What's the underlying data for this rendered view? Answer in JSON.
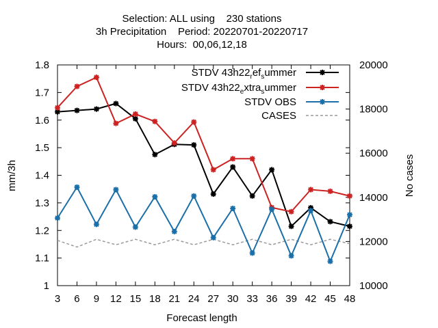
{
  "chart_data": {
    "type": "line",
    "title_lines": [
      "Selection: ALL using    230 stations",
      "3h Precipitation    Period: 20220701-20220717",
      "Hours:  00,06,12,18"
    ],
    "xlabel": "Forecast length",
    "ylabel": "mm/3h",
    "y2label": "No cases",
    "x": [
      3,
      6,
      9,
      12,
      15,
      18,
      21,
      24,
      27,
      30,
      33,
      36,
      39,
      42,
      45,
      48
    ],
    "xlim": [
      3,
      48
    ],
    "ylim": [
      1.0,
      1.8
    ],
    "y2lim": [
      10000,
      20000
    ],
    "yticks": [
      "1",
      "1.1",
      "1.2",
      "1.3",
      "1.4",
      "1.5",
      "1.6",
      "1.7",
      "1.8"
    ],
    "y2ticks": [
      "10000",
      "12000",
      "14000",
      "16000",
      "18000",
      "20000"
    ],
    "xticks": [
      "3",
      "6",
      "9",
      "12",
      "15",
      "18",
      "21",
      "24",
      "27",
      "30",
      "33",
      "36",
      "39",
      "42",
      "45",
      "48"
    ],
    "legend_position": "top-right",
    "grid": false,
    "series": [
      {
        "legend_main": "STDV 43h22",
        "legend_parts": [
          {
            "t": "STDV 43h22",
            "sub": false
          },
          {
            "t": "r",
            "sub": true
          },
          {
            "t": "ef",
            "sub": false
          },
          {
            "t": "s",
            "sub": true
          },
          {
            "t": "ummer",
            "sub": false
          }
        ],
        "color": "#000000",
        "axis": "y",
        "style": "solid",
        "marker": "star",
        "values": [
          1.63,
          1.635,
          1.64,
          1.66,
          1.605,
          1.475,
          1.512,
          1.51,
          1.332,
          1.43,
          1.325,
          1.42,
          1.215,
          1.282,
          1.232,
          1.215
        ]
      },
      {
        "legend_main": "STDV 43h22",
        "legend_parts": [
          {
            "t": "STDV 43h22",
            "sub": false
          },
          {
            "t": "e",
            "sub": true
          },
          {
            "t": "xtra",
            "sub": false
          },
          {
            "t": "s",
            "sub": true
          },
          {
            "t": "ummer",
            "sub": false
          }
        ],
        "color": "#cc2222",
        "axis": "y",
        "style": "solid",
        "marker": "star",
        "values": [
          1.645,
          1.722,
          1.755,
          1.588,
          1.622,
          1.595,
          1.517,
          1.593,
          1.42,
          1.46,
          1.46,
          1.283,
          1.268,
          1.348,
          1.342,
          1.325
        ]
      },
      {
        "legend_main": "STDV OBS",
        "legend_parts": [
          {
            "t": "STDV OBS",
            "sub": false
          }
        ],
        "color": "#1a6fa8",
        "axis": "y",
        "style": "solid",
        "marker": "star",
        "values": [
          1.245,
          1.357,
          1.222,
          1.348,
          1.212,
          1.322,
          1.196,
          1.325,
          1.174,
          1.28,
          1.118,
          1.277,
          1.108,
          1.272,
          1.088,
          1.257
        ]
      },
      {
        "legend_main": "CASES",
        "legend_parts": [
          {
            "t": "CASES",
            "sub": false
          }
        ],
        "color": "#999999",
        "axis": "y2",
        "style": "dashed",
        "marker": "none",
        "values": [
          12050,
          11750,
          12100,
          11850,
          12100,
          11850,
          12100,
          11850,
          12100,
          11850,
          12100,
          11850,
          12100,
          11850,
          12100,
          11900
        ]
      }
    ]
  }
}
